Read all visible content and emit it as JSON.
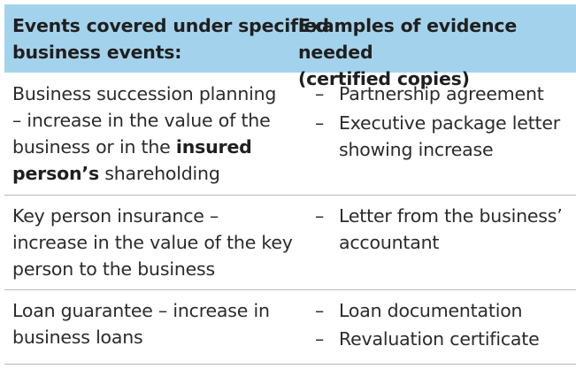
{
  "header": {
    "col1": [
      "Events covered under specified",
      "business events:"
    ],
    "col2": [
      "Examples of evidence needed",
      "(certified copies)"
    ]
  },
  "rows": [
    {
      "event_lines": [
        "Business succession planning",
        "– increase in the value of the",
        "business or in the "
      ],
      "event_bold_1": "insured",
      "event_bold_2": "person’s",
      "event_tail": " shareholding",
      "dash": "–",
      "evidence": [
        [
          "Partnership agreement"
        ],
        [
          "Executive package letter",
          "showing increase"
        ]
      ]
    },
    {
      "event_lines": [
        "Key person insurance –",
        "increase in the value of the key",
        "person to the business"
      ],
      "dash": "–",
      "evidence": [
        [
          "Letter from the business’",
          "accountant"
        ]
      ]
    },
    {
      "event_lines": [
        "Loan guarantee – increase in",
        "business loans"
      ],
      "dash": "–",
      "evidence": [
        [
          "Loan documentation"
        ],
        [
          "Revaluation certificate"
        ]
      ]
    }
  ]
}
